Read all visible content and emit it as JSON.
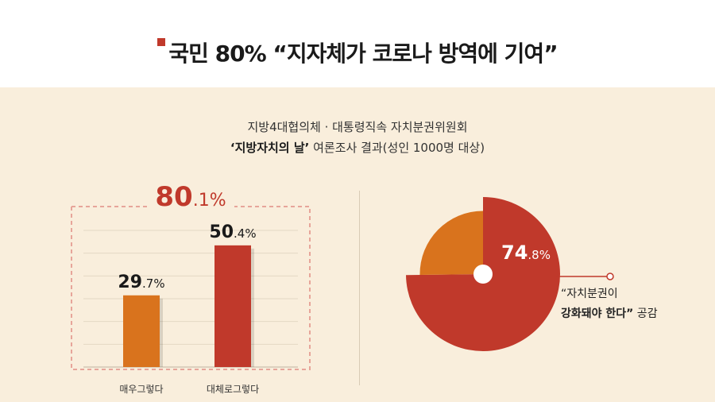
{
  "header": {
    "title": "국민 80% “지자체가 코로나 방역에 기여”",
    "accent_color": "#c0392b"
  },
  "subtitle": {
    "line1": "지방4대협의체 · 대통령직속 자치분권위원회",
    "line2_bold": "‘지방자치의 날’",
    "line2_rest": " 여론조사 결과(성인 1000명 대상)"
  },
  "total": {
    "value_main": "80",
    "value_decimal": ".1%"
  },
  "colors": {
    "orange": "#d9731d",
    "red": "#c0392b",
    "dashed": "#e7a59a",
    "panel": "#f9eedc"
  },
  "chart_data": [
    {
      "type": "bar",
      "categories": [
        "매우그렇다",
        "대체로그렇다"
      ],
      "values": [
        29.7,
        50.4
      ],
      "value_labels": [
        {
          "main": "29",
          "decimal": ".7%"
        },
        {
          "main": "50",
          "decimal": ".4%"
        }
      ],
      "colors": [
        "#d9731d",
        "#c0392b"
      ],
      "ylim": [
        0,
        60
      ],
      "grid": true
    },
    {
      "type": "pie",
      "categories": [
        "“자치분권이 강화돼야 한다” 공감",
        ""
      ],
      "values": [
        74.8,
        25.2
      ],
      "value_label": {
        "main": "74",
        "decimal": ".8%"
      },
      "colors": [
        "#c0392b",
        "#d9731d"
      ]
    }
  ],
  "callout": {
    "line1": "“자치분권이",
    "line2_bold": "강화돼야 한다”",
    "line2_rest": " 공감"
  }
}
